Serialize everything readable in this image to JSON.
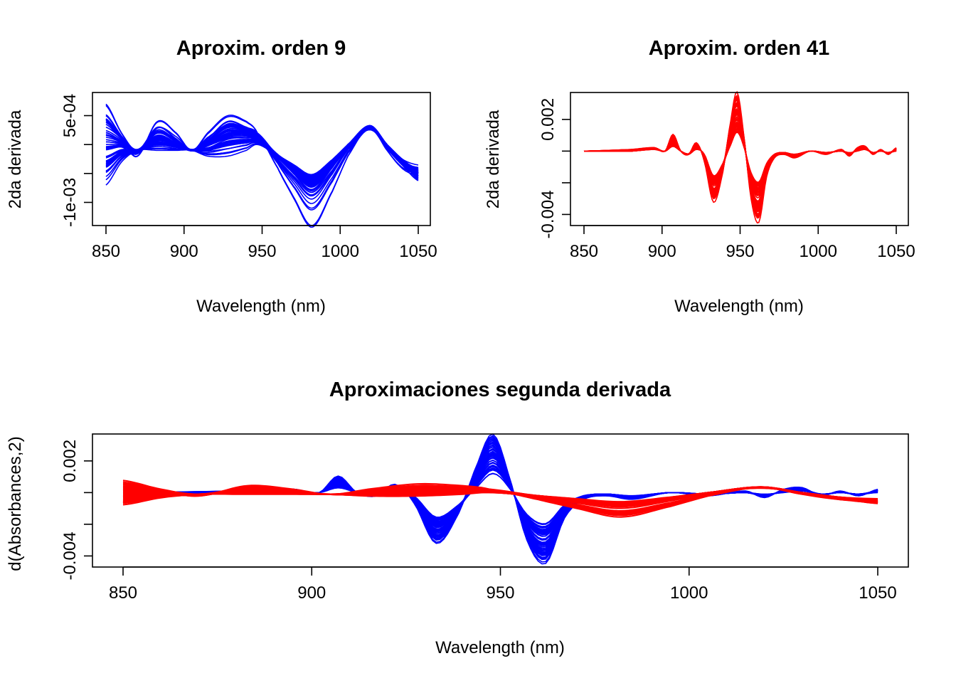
{
  "chart_data": [
    {
      "type": "line",
      "title": "Aproxim. orden 9",
      "xlabel": "Wavelength (nm)",
      "ylabel": "2da derivada",
      "xlim": [
        850,
        1050
      ],
      "ylim": [
        -0.0014,
        0.0009
      ],
      "x_ticks": [
        850,
        900,
        950,
        1000,
        1050
      ],
      "x_tick_labels": [
        "850",
        "900",
        "950",
        "1000",
        "1050"
      ],
      "y_ticks": [
        -0.001,
        -0.0005,
        0,
        0.0005
      ],
      "y_tick_labels": [
        "-1e-03",
        "",
        "",
        "5e-04"
      ],
      "line_color": "#0000ff",
      "series_count": 50,
      "x": [
        850,
        860,
        870,
        883,
        895,
        905,
        915,
        928,
        940,
        947,
        960,
        970,
        982,
        995,
        1005,
        1019,
        1030,
        1040,
        1050
      ],
      "series": [
        {
          "values": [
            0.0007,
            0.0002,
            -0.0001,
            0.0003,
            0.0001,
            -0.0001,
            0.0001,
            0.0004,
            0.0003,
            0.0002,
            -0.0002,
            -0.0005,
            -0.0008,
            -0.0004,
            0.0,
            0.0003,
            0.0,
            -0.0003,
            -0.0004
          ]
        },
        {
          "values": [
            0.0,
            0.0,
            -0.0001,
            0.0001,
            0.0,
            -0.0001,
            0.0,
            0.0002,
            0.0002,
            0.0001,
            -0.0002,
            -0.0004,
            -0.0006,
            -0.0003,
            0.0,
            0.0003,
            0.0,
            -0.0003,
            -0.0005
          ]
        },
        {
          "values": [
            -0.0007,
            -0.0003,
            -0.0001,
            -0.0001,
            -0.0001,
            -0.0001,
            -0.0002,
            -0.0002,
            -0.0001,
            0.0,
            -0.0002,
            -0.0004,
            -0.0006,
            -0.0003,
            0.0,
            0.0003,
            0.0,
            -0.0003,
            -0.0006
          ]
        },
        {
          "values": [
            0.0003,
            0.0001,
            -0.0002,
            0.0004,
            0.0002,
            -0.0001,
            0.0002,
            0.0005,
            0.0004,
            0.0002,
            -0.0004,
            -0.0009,
            -0.0014,
            -0.0008,
            -0.0002,
            0.0003,
            -0.0001,
            -0.0004,
            -0.0005
          ]
        }
      ]
    },
    {
      "type": "line",
      "title": "Aproxim. orden 41",
      "xlabel": "Wavelength (nm)",
      "ylabel": "2da derivada",
      "xlim": [
        850,
        1050
      ],
      "ylim": [
        -0.0047,
        0.0037
      ],
      "x_ticks": [
        850,
        900,
        950,
        1000,
        1050
      ],
      "x_tick_labels": [
        "850",
        "900",
        "950",
        "1000",
        "1050"
      ],
      "y_ticks": [
        -0.004,
        -0.002,
        0,
        0.002
      ],
      "y_tick_labels": [
        "-0.004",
        "",
        "",
        "0.002"
      ],
      "line_color": "#ff0000",
      "series_count": 50,
      "x": [
        850,
        880,
        895,
        902,
        907,
        912,
        917,
        922,
        927,
        933,
        939,
        944,
        948,
        952,
        957,
        962,
        967,
        972,
        978,
        985,
        995,
        1005,
        1015,
        1020,
        1025,
        1030,
        1035,
        1040,
        1045,
        1050
      ],
      "series": [
        {
          "values": [
            0.0,
            0.0001,
            0.0002,
            0.0,
            0.001,
            0.0,
            -0.0002,
            0.0005,
            -0.0006,
            -0.003,
            -0.0012,
            0.0018,
            0.0035,
            0.0012,
            -0.0028,
            -0.0042,
            -0.0015,
            -0.0004,
            -0.0002,
            -0.0004,
            0.0,
            -0.0002,
            0.0001,
            -0.0003,
            0.0002,
            0.0003,
            -0.0002,
            0.0001,
            -0.0002,
            0.0002
          ]
        },
        {
          "values": [
            0.0,
            0.0,
            0.0002,
            0.0,
            0.0006,
            0.0,
            -0.0002,
            0.0003,
            -0.0004,
            -0.0024,
            -0.001,
            0.001,
            0.0024,
            0.0008,
            -0.0022,
            -0.0032,
            -0.0012,
            -0.0003,
            -0.0001,
            -0.0003,
            0.0,
            -0.0001,
            0.0,
            -0.0002,
            0.0001,
            0.0002,
            -0.0001,
            0.0,
            -0.0001,
            0.0001
          ]
        },
        {
          "values": [
            0.0,
            0.0,
            0.0001,
            0.0,
            0.0003,
            0.0,
            -0.0002,
            0.0001,
            -0.0002,
            -0.0016,
            -0.0008,
            0.0004,
            0.0012,
            0.0004,
            -0.0014,
            -0.002,
            -0.0008,
            -0.0002,
            -0.0001,
            -0.0002,
            0.0,
            -0.0001,
            0.0,
            -0.0001,
            0.0,
            0.0001,
            -0.0001,
            0.0,
            -0.0001,
            0.0
          ]
        }
      ]
    },
    {
      "type": "line",
      "title": "Aproximaciones segunda derivada",
      "xlabel": "Wavelength (nm)",
      "ylabel": "d(Absorbances,2)",
      "xlim": [
        850,
        1050
      ],
      "ylim": [
        -0.0047,
        0.0037
      ],
      "x_ticks": [
        850,
        900,
        950,
        1000,
        1050
      ],
      "x_tick_labels": [
        "850",
        "900",
        "950",
        "1000",
        "1050"
      ],
      "y_ticks": [
        -0.004,
        -0.002,
        0,
        0.002
      ],
      "y_tick_labels": [
        "-0.004",
        "",
        "",
        "0.002"
      ],
      "overlay": [
        "Aproxim. orden 41",
        "Aproxim. orden 9"
      ],
      "colors": [
        "#0000ff",
        "#ff0000"
      ]
    }
  ]
}
